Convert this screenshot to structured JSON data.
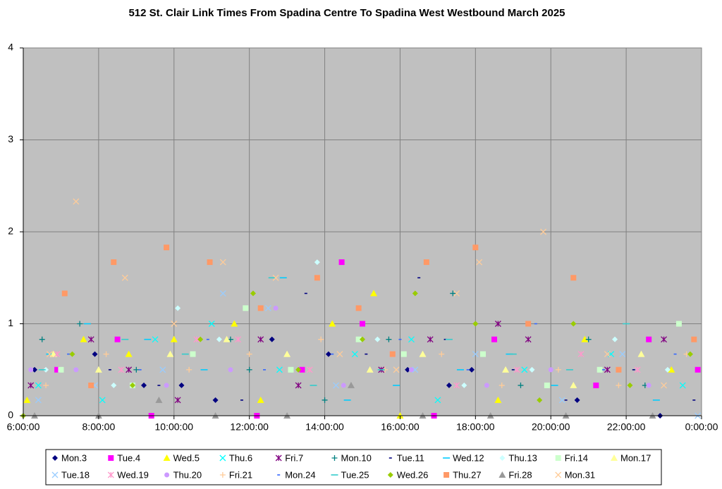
{
  "chart_data": {
    "type": "scatter",
    "title": "512 St. Clair Link Times From Spadina Centre To Spadina West Westbound March 2025",
    "xlim": [
      6,
      24
    ],
    "xticks": [
      {
        "value": 6,
        "label": "6:00:00"
      },
      {
        "value": 8,
        "label": "8:00:00"
      },
      {
        "value": 10,
        "label": "10:00:00"
      },
      {
        "value": 12,
        "label": "12:00:00"
      },
      {
        "value": 14,
        "label": "14:00:00"
      },
      {
        "value": 16,
        "label": "16:00:00"
      },
      {
        "value": 18,
        "label": "18:00:00"
      },
      {
        "value": 20,
        "label": "20:00:00"
      },
      {
        "value": 22,
        "label": "22:00:00"
      },
      {
        "value": 24,
        "label": "0:00:00"
      }
    ],
    "ylim": [
      0,
      4
    ],
    "yticks": [
      0,
      1,
      2,
      3,
      4
    ],
    "grid": true,
    "legend": "bottom",
    "series": [
      {
        "name": "Mon.3",
        "color": "#000080",
        "marker": "diamond",
        "x": [
          6.3,
          7.9,
          9.2,
          10.2,
          11.1,
          12.6,
          14.1,
          16.2,
          17.3,
          17.9,
          20.7,
          22.9
        ],
        "values": [
          0.5,
          0.67,
          0.33,
          0.33,
          0.17,
          0.83,
          0.67,
          0.5,
          0.33,
          0.5,
          0.17,
          0
        ]
      },
      {
        "name": "Tue.4",
        "color": "#ff00ff",
        "marker": "square",
        "x": [
          6.9,
          8.5,
          9.4,
          12.2,
          13.4,
          14.45,
          15.0,
          16.9,
          18.5,
          21.2,
          22.6,
          23.9
        ],
        "values": [
          0.5,
          0.83,
          0,
          0,
          0.5,
          1.67,
          1.0,
          0,
          0.83,
          0.33,
          0.83,
          0.5
        ]
      },
      {
        "name": "Wed.5",
        "color": "#ffff00",
        "marker": "triangle",
        "x": [
          6.1,
          7.6,
          8.8,
          10.0,
          11.6,
          12.3,
          14.2,
          15.3,
          16.0,
          18.6,
          20.9,
          23.2
        ],
        "values": [
          0.17,
          0.83,
          0.67,
          0.83,
          1.0,
          0.17,
          1.0,
          1.33,
          0,
          0.17,
          0.83,
          0.5
        ]
      },
      {
        "name": "Thu.6",
        "color": "#00ffff",
        "marker": "x",
        "x": [
          6.4,
          8.1,
          9.5,
          11.0,
          12.8,
          14.8,
          16.3,
          17.0,
          19.3,
          21.6,
          23.5
        ],
        "values": [
          0.33,
          0.17,
          0.83,
          1.0,
          0.5,
          0.67,
          0.83,
          0.17,
          0.5,
          0.67,
          0.33
        ]
      },
      {
        "name": "Fri.7",
        "color": "#800080",
        "marker": "star",
        "x": [
          6.2,
          7.8,
          8.8,
          10.1,
          12.3,
          13.3,
          15.5,
          16.8,
          18.6,
          19.4,
          21.5,
          23.0
        ],
        "values": [
          0.33,
          0.83,
          0.5,
          0.17,
          0.83,
          0.33,
          0.5,
          0.83,
          1.0,
          0.83,
          0.5,
          0.83
        ]
      },
      {
        "name": "Mon.10",
        "color": "#008080",
        "marker": "plus",
        "x": [
          6.5,
          7.5,
          9.0,
          11.5,
          12.0,
          14.0,
          15.7,
          17.4,
          19.2,
          21.0,
          22.5
        ],
        "values": [
          0.83,
          1.0,
          0.5,
          0.83,
          0.5,
          0.17,
          0.83,
          1.33,
          0.33,
          0.83,
          0.33
        ]
      },
      {
        "name": "Tue.11",
        "color": "#000080",
        "marker": "dash",
        "x": [
          6.3,
          8.3,
          9.6,
          11.8,
          13.5,
          15.1,
          16.5,
          17.2,
          19.0,
          20.4,
          22.2,
          23.8
        ],
        "values": [
          0.5,
          0.5,
          0.33,
          0.17,
          1.33,
          0.67,
          1.5,
          0.83,
          0.5,
          0.17,
          0.5,
          0.17
        ]
      },
      {
        "name": "Wed.12",
        "color": "#00ccff",
        "marker": "longdash",
        "x": [
          6.7,
          7.7,
          9.3,
          10.8,
          12.9,
          14.6,
          15.9,
          17.6,
          18.9,
          20.1,
          22.8
        ],
        "values": [
          0.67,
          1.0,
          0.83,
          0.5,
          1.5,
          0.17,
          0.33,
          0.5,
          0.67,
          0.33,
          0.17
        ]
      },
      {
        "name": "Thu.13",
        "color": "#ccffff",
        "marker": "diamond",
        "x": [
          6.6,
          8.4,
          10.1,
          11.2,
          13.8,
          15.4,
          17.7,
          19.5,
          21.7,
          23.1
        ],
        "values": [
          0.5,
          0.33,
          1.17,
          0.83,
          1.67,
          0.83,
          0.33,
          0.5,
          0.83,
          0.5
        ]
      },
      {
        "name": "Fri.14",
        "color": "#ccffcc",
        "marker": "square",
        "x": [
          7.0,
          8.9,
          10.5,
          11.9,
          13.1,
          14.9,
          16.1,
          18.2,
          19.9,
          21.3,
          23.4
        ],
        "values": [
          0.5,
          0.33,
          0.67,
          1.17,
          0.5,
          0.83,
          0.67,
          0.67,
          0.33,
          0.5,
          1.0
        ]
      },
      {
        "name": "Mon.17",
        "color": "#ffff99",
        "marker": "triangle",
        "x": [
          6.8,
          8.0,
          9.9,
          11.4,
          13.0,
          15.2,
          16.6,
          18.8,
          20.6,
          22.4
        ],
        "values": [
          0.67,
          0.5,
          0.67,
          0.83,
          0.67,
          0.5,
          0.67,
          0.5,
          0.33,
          0.67
        ]
      },
      {
        "name": "Tue.18",
        "color": "#99ccff",
        "marker": "x",
        "x": [
          6.4,
          7.9,
          9.7,
          11.3,
          12.5,
          14.3,
          16.4,
          18.0,
          20.3,
          21.9,
          23.9
        ],
        "values": [
          0.17,
          0.33,
          0.5,
          1.33,
          1.17,
          0.33,
          0.5,
          0.67,
          0.17,
          0.67,
          0
        ]
      },
      {
        "name": "Wed.19",
        "color": "#ff99cc",
        "marker": "star",
        "x": [
          6.9,
          8.6,
          10.6,
          11.7,
          13.6,
          15.8,
          17.5,
          19.1,
          20.8,
          22.3
        ],
        "values": [
          0.67,
          0.5,
          0.83,
          0.83,
          0.5,
          0.67,
          0.33,
          0.5,
          0.67,
          0.5
        ]
      },
      {
        "name": "Thu.20",
        "color": "#cc99ff",
        "marker": "circle",
        "x": [
          6.2,
          7.4,
          9.8,
          11.5,
          12.7,
          14.5,
          16.3,
          18.3,
          20.0,
          22.6
        ],
        "values": [
          0.5,
          0.5,
          0.33,
          0.5,
          1.17,
          0.33,
          0.5,
          0.33,
          0.5,
          0.33
        ]
      },
      {
        "name": "Fri.21",
        "color": "#ffcc99",
        "marker": "plus",
        "x": [
          6.6,
          8.2,
          10.4,
          12.0,
          13.9,
          15.6,
          17.1,
          18.7,
          20.2,
          21.8,
          23.6
        ],
        "values": [
          0.33,
          0.67,
          0.5,
          0.67,
          0.83,
          0.5,
          0.67,
          0.33,
          0.5,
          0.33,
          0.67
        ]
      },
      {
        "name": "Mon.24",
        "color": "#3366ff",
        "marker": "dash",
        "x": [
          7.2,
          9.1,
          10.9,
          12.4,
          14.2,
          16.0,
          17.8,
          19.6,
          21.4,
          23.3
        ],
        "values": [
          0.67,
          0.5,
          0.83,
          0.5,
          0.67,
          0.83,
          0.5,
          1.0,
          0.5,
          0.67
        ]
      },
      {
        "name": "Tue.25",
        "color": "#33cccc",
        "marker": "longdash",
        "x": [
          6.5,
          8.7,
          10.3,
          12.6,
          13.7,
          15.5,
          17.3,
          19.0,
          20.5,
          22.0
        ],
        "values": [
          0.5,
          0.83,
          0.67,
          1.5,
          0.33,
          0.5,
          0.83,
          0.67,
          0.5,
          1.0
        ]
      },
      {
        "name": "Wed.26",
        "color": "#99cc00",
        "marker": "diamond",
        "x": [
          6.0,
          7.3,
          8.9,
          10.7,
          12.1,
          13.3,
          15.0,
          16.4,
          18.0,
          19.7,
          20.6,
          22.1,
          23.7
        ],
        "values": [
          0,
          0.67,
          0.33,
          0.83,
          1.33,
          0.5,
          0.83,
          1.33,
          1.0,
          0.17,
          1.0,
          0.33,
          0.67
        ]
      },
      {
        "name": "Thu.27",
        "color": "#ff9966",
        "marker": "square",
        "x": [
          7.1,
          7.8,
          8.4,
          9.8,
          10.95,
          12.3,
          13.8,
          14.9,
          15.8,
          16.7,
          18.0,
          19.4,
          20.6,
          21.8,
          23.8
        ],
        "values": [
          1.33,
          0.33,
          1.67,
          1.83,
          1.67,
          1.17,
          1.5,
          1.17,
          0.67,
          1.67,
          1.83,
          1.0,
          1.5,
          0.5,
          0.83
        ]
      },
      {
        "name": "Fri.28",
        "color": "#999999",
        "marker": "triangle",
        "x": [
          6.3,
          8.0,
          9.6,
          11.1,
          13.0,
          14.7,
          16.6,
          18.4,
          20.4,
          22.7
        ],
        "values": [
          0,
          0,
          0.17,
          0,
          0,
          0.33,
          0,
          0,
          0,
          0
        ]
      },
      {
        "name": "Mon.31",
        "color": "#ffcc99",
        "marker": "x",
        "x": [
          6.7,
          7.4,
          8.7,
          10.0,
          11.3,
          12.7,
          14.4,
          15.9,
          17.5,
          18.1,
          19.8,
          21.5,
          23.0
        ],
        "values": [
          0.67,
          2.33,
          1.5,
          1.0,
          1.67,
          1.5,
          0.67,
          0.5,
          1.33,
          1.67,
          2.0,
          0.67,
          0.33
        ]
      }
    ]
  }
}
